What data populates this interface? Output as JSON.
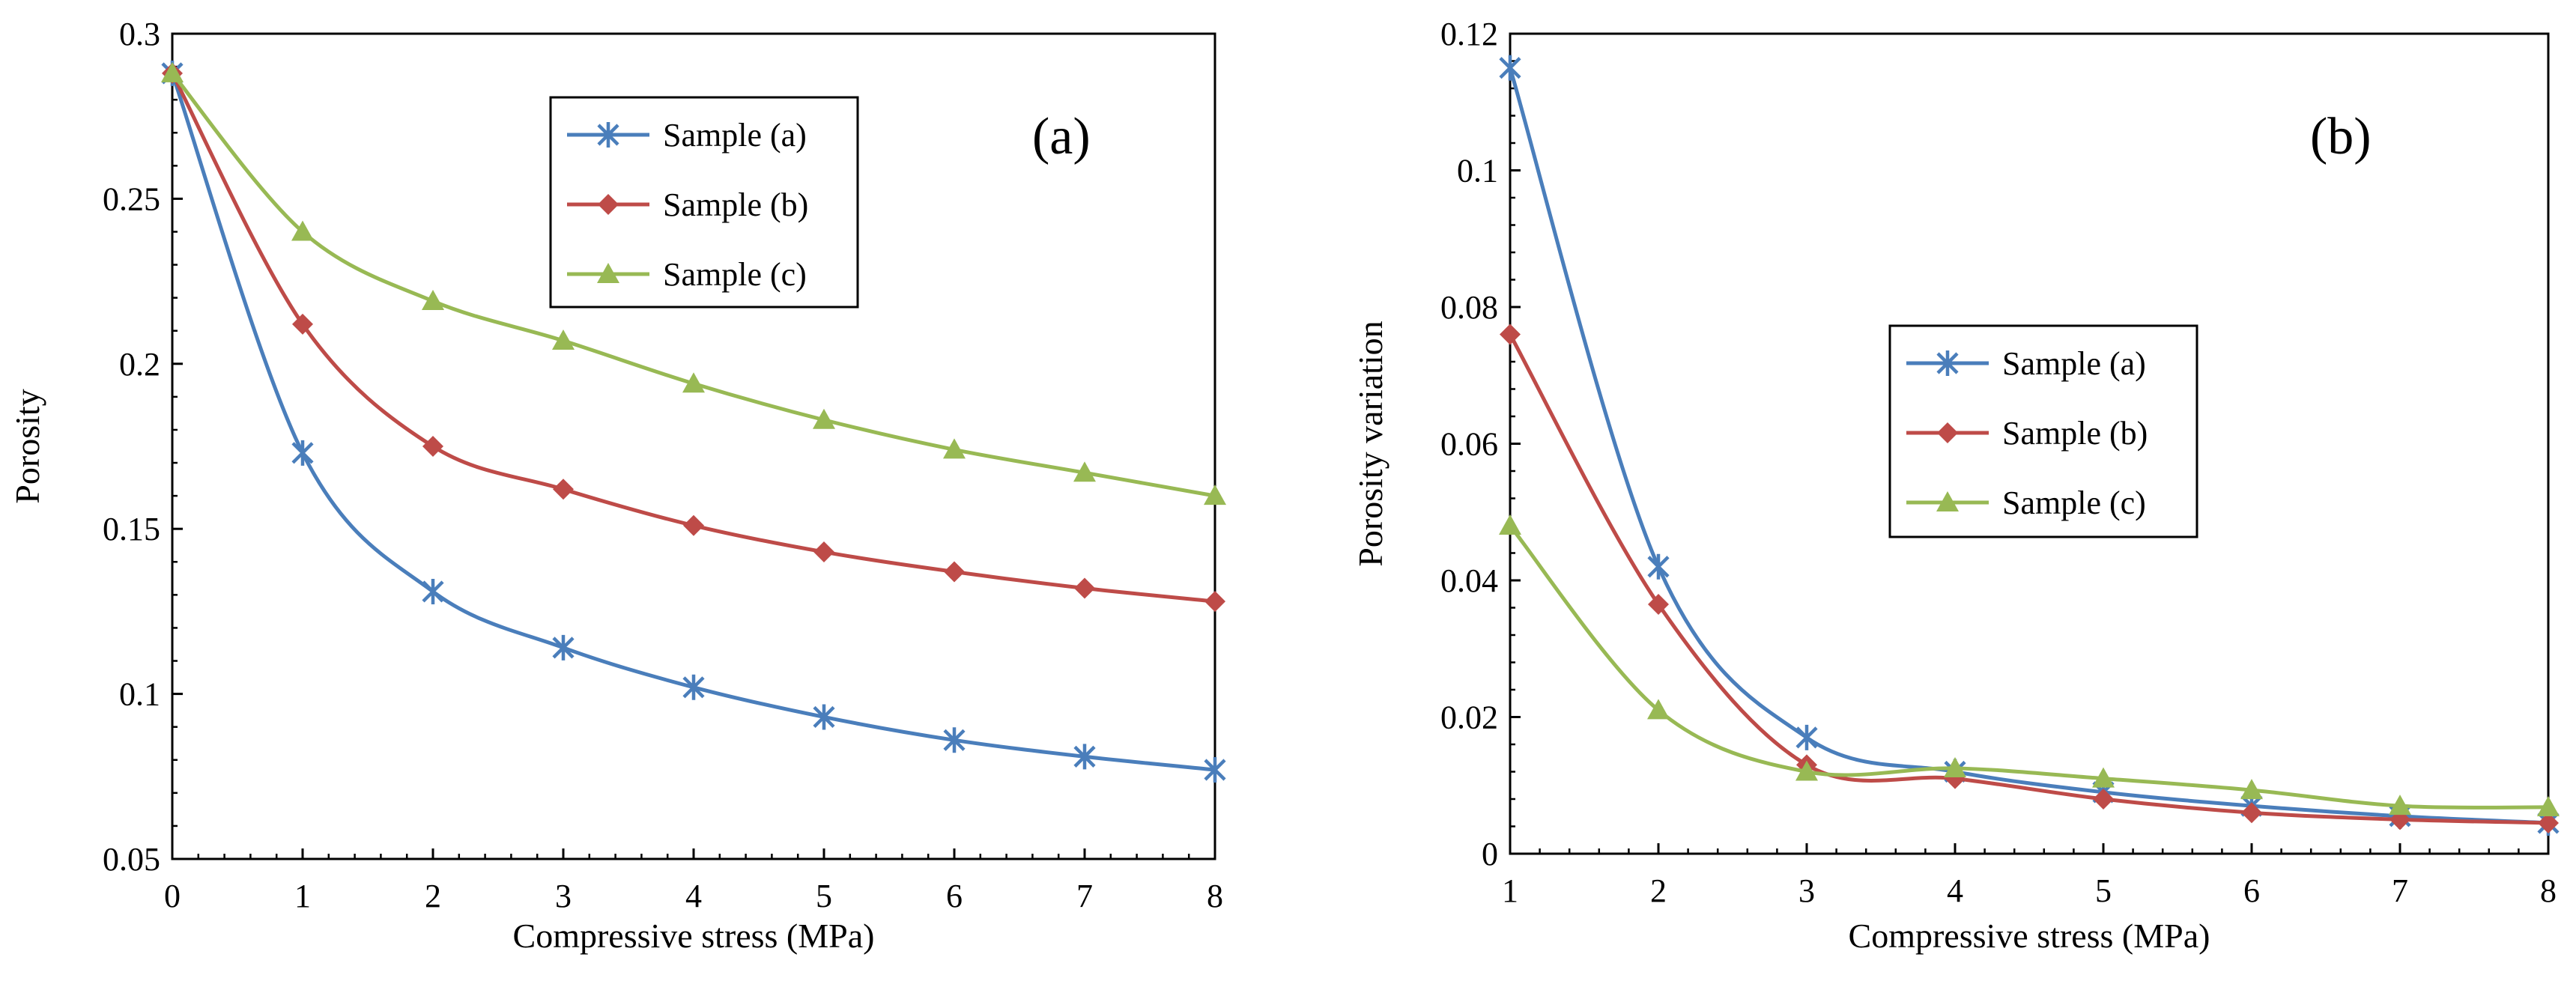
{
  "colors": {
    "sample_a": "#4a7ebb",
    "sample_b": "#be4b48",
    "sample_c": "#98b954"
  },
  "chart_data": [
    {
      "type": "line",
      "panel_label": "(a)",
      "title": "",
      "xlabel": "Compressive stress (MPa)",
      "ylabel": "Porosity",
      "xlim": [
        0,
        8
      ],
      "ylim": [
        0.05,
        0.3
      ],
      "xticks": [
        0,
        1,
        2,
        3,
        4,
        5,
        6,
        7,
        8
      ],
      "xtick_labels": [
        "0",
        "1",
        "2",
        "3",
        "4",
        "5",
        "6",
        "7",
        "8"
      ],
      "yticks": [
        0.05,
        0.1,
        0.15,
        0.2,
        0.25,
        0.3
      ],
      "ytick_labels": [
        "0.05",
        "0.1",
        "0.15",
        "0.2",
        "0.25",
        "0.3"
      ],
      "grid": false,
      "legend_position": "top-center",
      "x": [
        0,
        1,
        2,
        3,
        4,
        5,
        6,
        7,
        8
      ],
      "series": [
        {
          "name": "Sample (a)",
          "marker": "star",
          "color": "#4a7ebb",
          "values": [
            0.288,
            0.173,
            0.131,
            0.114,
            0.102,
            0.093,
            0.086,
            0.081,
            0.077
          ]
        },
        {
          "name": "Sample (b)",
          "marker": "diamond",
          "color": "#be4b48",
          "values": [
            0.288,
            0.212,
            0.175,
            0.162,
            0.151,
            0.143,
            0.137,
            0.132,
            0.128
          ]
        },
        {
          "name": "Sample (c)",
          "marker": "triangle",
          "color": "#98b954",
          "values": [
            0.288,
            0.24,
            0.219,
            0.207,
            0.194,
            0.183,
            0.174,
            0.167,
            0.16
          ]
        }
      ]
    },
    {
      "type": "line",
      "panel_label": "(b)",
      "title": "",
      "xlabel": "Compressive stress (MPa)",
      "ylabel": "Porosity variation",
      "xlim": [
        1,
        8
      ],
      "ylim": [
        0,
        0.12
      ],
      "xticks": [
        1,
        2,
        3,
        4,
        5,
        6,
        7,
        8
      ],
      "xtick_labels": [
        "1",
        "2",
        "3",
        "4",
        "5",
        "6",
        "7",
        "8"
      ],
      "yticks": [
        0,
        0.02,
        0.04,
        0.06,
        0.08,
        0.1,
        0.12
      ],
      "ytick_labels": [
        "0",
        "0.02",
        "0.04",
        "0.06",
        "0.08",
        "0.1",
        "0.12"
      ],
      "grid": false,
      "legend_position": "center",
      "x": [
        1,
        2,
        3,
        4,
        5,
        6,
        7,
        8
      ],
      "series": [
        {
          "name": "Sample (a)",
          "marker": "star",
          "color": "#4a7ebb",
          "values": [
            0.115,
            0.042,
            0.017,
            0.012,
            0.009,
            0.007,
            0.0055,
            0.0045
          ]
        },
        {
          "name": "Sample (b)",
          "marker": "diamond",
          "color": "#be4b48",
          "values": [
            0.076,
            0.0365,
            0.013,
            0.011,
            0.008,
            0.006,
            0.005,
            0.0045
          ]
        },
        {
          "name": "Sample (c)",
          "marker": "triangle",
          "color": "#98b954",
          "values": [
            0.048,
            0.021,
            0.012,
            0.0125,
            0.011,
            0.0093,
            0.007,
            0.0068
          ]
        }
      ]
    }
  ]
}
